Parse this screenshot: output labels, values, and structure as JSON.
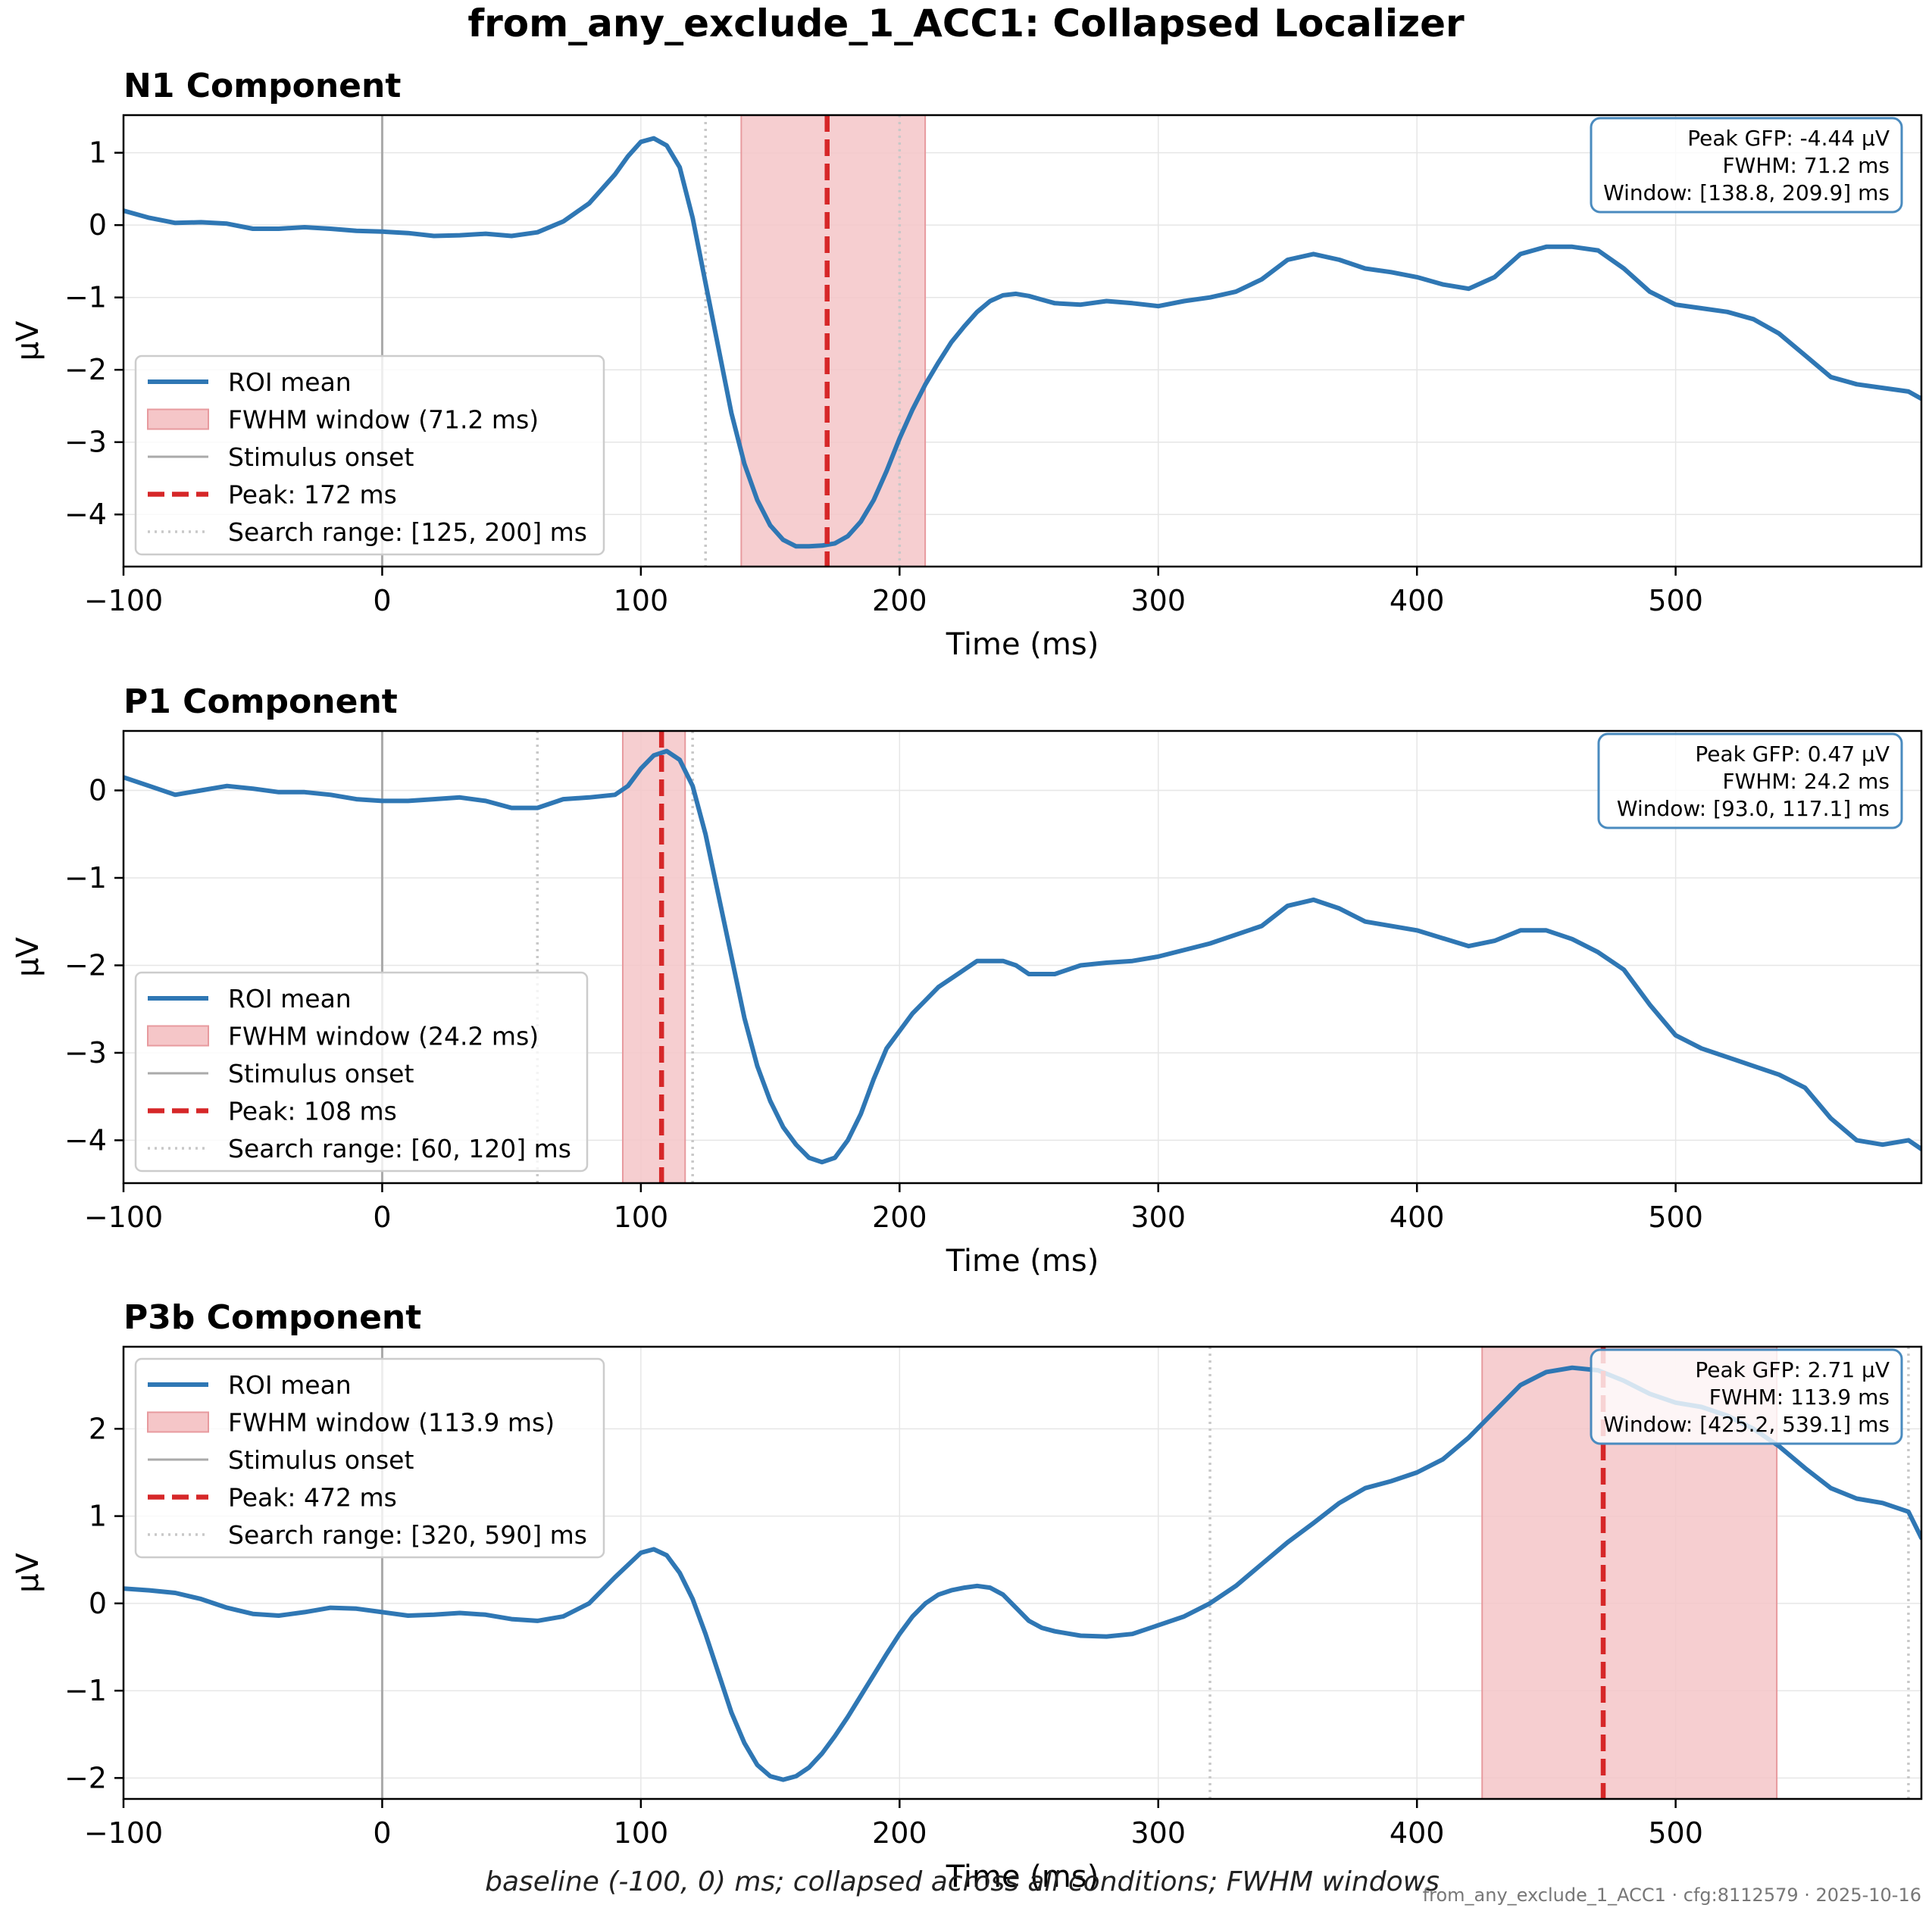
{
  "figure": {
    "title": "from_any_exclude_1_ACC1: Collapsed Localizer",
    "footer_caption": "baseline (-100, 0) ms; collapsed across all conditions; FWHM windows",
    "footer_stamp": "from_any_exclude_1_ACC1 · cfg:8112579 · 2025-10-16"
  },
  "colors": {
    "roi_line": "#2f77b4",
    "fwhm_fill": "#f5c6c8",
    "fwhm_edge": "#e79a9e",
    "peak_line": "#d62728",
    "onset_line": "#aaaaaa",
    "search_line": "#c8c8c8",
    "grid": "#e6e6e6",
    "info_border": "#4a8bbf"
  },
  "chart_data": [
    {
      "type": "line",
      "title": "N1 Component",
      "xlabel": "Time (ms)",
      "ylabel": "µV",
      "xlim": [
        -100,
        595
      ],
      "ylim": [
        -4.72,
        1.52
      ],
      "xticks": [
        -100,
        0,
        100,
        200,
        300,
        400,
        500
      ],
      "yticks": [
        -4,
        -3,
        -2,
        -1,
        0,
        1
      ],
      "xtick_labels": [
        "−100",
        "0",
        "100",
        "200",
        "300",
        "400",
        "500"
      ],
      "ytick_labels": [
        "−4",
        "−3",
        "−2",
        "−1",
        "0",
        "1"
      ],
      "grid": true,
      "legend_placement": "lower-left",
      "legend": [
        {
          "kind": "line",
          "label": "ROI mean"
        },
        {
          "kind": "patch",
          "label": "FWHM window (71.2 ms)"
        },
        {
          "kind": "onset",
          "label": "Stimulus onset"
        },
        {
          "kind": "peak",
          "label": "Peak: 172 ms"
        },
        {
          "kind": "search",
          "label": "Search range: [125, 200] ms"
        }
      ],
      "info_box": [
        "Peak GFP: -4.44 µV",
        "FWHM: 71.2 ms",
        "Window: [138.8, 209.9] ms"
      ],
      "fwhm_window": [
        138.8,
        209.9
      ],
      "peak_ms": 172,
      "search_range": [
        125,
        200
      ],
      "onset_ms": 0,
      "series": [
        {
          "name": "ROI mean",
          "x": [
            -100,
            -90,
            -80,
            -70,
            -60,
            -50,
            -40,
            -30,
            -20,
            -10,
            0,
            10,
            20,
            30,
            40,
            50,
            60,
            70,
            80,
            90,
            95,
            100,
            105,
            110,
            115,
            120,
            125,
            130,
            135,
            140,
            145,
            150,
            155,
            160,
            165,
            170,
            175,
            180,
            185,
            190,
            195,
            200,
            205,
            210,
            215,
            220,
            225,
            230,
            235,
            240,
            245,
            250,
            255,
            260,
            270,
            280,
            290,
            300,
            310,
            320,
            330,
            340,
            350,
            360,
            370,
            380,
            390,
            400,
            410,
            420,
            430,
            440,
            450,
            460,
            470,
            480,
            490,
            500,
            510,
            520,
            530,
            540,
            550,
            560,
            570,
            580,
            590,
            595
          ],
          "y": [
            0.2,
            0.1,
            0.03,
            0.04,
            0.02,
            -0.05,
            -0.05,
            -0.03,
            -0.05,
            -0.08,
            -0.09,
            -0.11,
            -0.15,
            -0.14,
            -0.12,
            -0.15,
            -0.1,
            0.05,
            0.3,
            0.7,
            0.95,
            1.15,
            1.2,
            1.1,
            0.8,
            0.1,
            -0.8,
            -1.7,
            -2.6,
            -3.3,
            -3.8,
            -4.15,
            -4.35,
            -4.44,
            -4.44,
            -4.43,
            -4.4,
            -4.3,
            -4.1,
            -3.8,
            -3.4,
            -2.95,
            -2.55,
            -2.2,
            -1.9,
            -1.62,
            -1.4,
            -1.2,
            -1.05,
            -0.97,
            -0.95,
            -0.98,
            -1.03,
            -1.08,
            -1.1,
            -1.05,
            -1.08,
            -1.12,
            -1.05,
            -1.0,
            -0.92,
            -0.75,
            -0.48,
            -0.4,
            -0.48,
            -0.6,
            -0.65,
            -0.72,
            -0.82,
            -0.88,
            -0.72,
            -0.4,
            -0.3,
            -0.3,
            -0.35,
            -0.6,
            -0.92,
            -1.1,
            -1.15,
            -1.2,
            -1.3,
            -1.5,
            -1.8,
            -2.1,
            -2.2,
            -2.25,
            -2.3,
            -2.4
          ]
        }
      ]
    },
    {
      "type": "line",
      "title": "P1 Component",
      "xlabel": "Time (ms)",
      "ylabel": "µV",
      "xlim": [
        -100,
        595
      ],
      "ylim": [
        -4.49,
        0.68
      ],
      "xticks": [
        -100,
        0,
        100,
        200,
        300,
        400,
        500
      ],
      "yticks": [
        -4,
        -3,
        -2,
        -1,
        0
      ],
      "xtick_labels": [
        "−100",
        "0",
        "100",
        "200",
        "300",
        "400",
        "500"
      ],
      "ytick_labels": [
        "−4",
        "−3",
        "−2",
        "−1",
        "0"
      ],
      "grid": true,
      "legend_placement": "lower-left",
      "legend": [
        {
          "kind": "line",
          "label": "ROI mean"
        },
        {
          "kind": "patch",
          "label": "FWHM window (24.2 ms)"
        },
        {
          "kind": "onset",
          "label": "Stimulus onset"
        },
        {
          "kind": "peak",
          "label": "Peak: 108 ms"
        },
        {
          "kind": "search",
          "label": "Search range: [60, 120] ms"
        }
      ],
      "info_box": [
        "Peak GFP: 0.47 µV",
        "FWHM: 24.2 ms",
        "Window: [93.0, 117.1] ms"
      ],
      "fwhm_window": [
        93.0,
        117.1
      ],
      "peak_ms": 108,
      "search_range": [
        60,
        120
      ],
      "onset_ms": 0,
      "series": [
        {
          "name": "ROI mean",
          "x": [
            -100,
            -90,
            -80,
            -70,
            -60,
            -50,
            -40,
            -30,
            -20,
            -10,
            0,
            10,
            20,
            30,
            40,
            50,
            60,
            70,
            80,
            90,
            95,
            100,
            105,
            110,
            115,
            120,
            125,
            130,
            135,
            140,
            145,
            150,
            155,
            160,
            165,
            170,
            175,
            180,
            185,
            190,
            195,
            200,
            205,
            210,
            215,
            220,
            230,
            240,
            245,
            250,
            260,
            270,
            280,
            290,
            300,
            320,
            340,
            350,
            360,
            370,
            380,
            400,
            420,
            430,
            440,
            450,
            460,
            470,
            480,
            490,
            500,
            510,
            520,
            530,
            540,
            550,
            560,
            570,
            580,
            590,
            595
          ],
          "y": [
            0.15,
            0.05,
            -0.05,
            0.0,
            0.05,
            0.02,
            -0.02,
            -0.02,
            -0.05,
            -0.1,
            -0.12,
            -0.12,
            -0.1,
            -0.08,
            -0.12,
            -0.2,
            -0.2,
            -0.1,
            -0.08,
            -0.05,
            0.05,
            0.25,
            0.4,
            0.45,
            0.35,
            0.05,
            -0.5,
            -1.2,
            -1.9,
            -2.6,
            -3.15,
            -3.55,
            -3.85,
            -4.05,
            -4.2,
            -4.25,
            -4.2,
            -4.0,
            -3.7,
            -3.3,
            -2.95,
            -2.75,
            -2.55,
            -2.4,
            -2.25,
            -2.15,
            -1.95,
            -1.95,
            -2.0,
            -2.1,
            -2.1,
            -2.0,
            -1.97,
            -1.95,
            -1.9,
            -1.75,
            -1.55,
            -1.32,
            -1.25,
            -1.35,
            -1.5,
            -1.6,
            -1.78,
            -1.72,
            -1.6,
            -1.6,
            -1.7,
            -1.85,
            -2.05,
            -2.45,
            -2.8,
            -2.95,
            -3.05,
            -3.15,
            -3.25,
            -3.4,
            -3.75,
            -4.0,
            -4.05,
            -4.0,
            -4.1
          ]
        }
      ]
    },
    {
      "type": "line",
      "title": "P3b Component",
      "xlabel": "Time (ms)",
      "ylabel": "µV",
      "xlim": [
        -100,
        595
      ],
      "ylim": [
        -2.24,
        2.94
      ],
      "xticks": [
        -100,
        0,
        100,
        200,
        300,
        400,
        500
      ],
      "yticks": [
        -2,
        -1,
        0,
        1,
        2
      ],
      "xtick_labels": [
        "−100",
        "0",
        "100",
        "200",
        "300",
        "400",
        "500"
      ],
      "ytick_labels": [
        "−2",
        "−1",
        "0",
        "1",
        "2"
      ],
      "grid": true,
      "legend_placement": "upper-left",
      "legend": [
        {
          "kind": "line",
          "label": "ROI mean"
        },
        {
          "kind": "patch",
          "label": "FWHM window (113.9 ms)"
        },
        {
          "kind": "onset",
          "label": "Stimulus onset"
        },
        {
          "kind": "peak",
          "label": "Peak: 472 ms"
        },
        {
          "kind": "search",
          "label": "Search range: [320, 590] ms"
        }
      ],
      "info_box": [
        "Peak GFP: 2.71 µV",
        "FWHM: 113.9 ms",
        "Window: [425.2, 539.1] ms"
      ],
      "fwhm_window": [
        425.2,
        539.1
      ],
      "peak_ms": 472,
      "search_range": [
        320,
        590
      ],
      "onset_ms": 0,
      "series": [
        {
          "name": "ROI mean",
          "x": [
            -100,
            -90,
            -80,
            -70,
            -60,
            -50,
            -40,
            -30,
            -20,
            -10,
            0,
            10,
            20,
            30,
            40,
            50,
            60,
            70,
            80,
            90,
            100,
            105,
            110,
            115,
            120,
            125,
            130,
            135,
            140,
            145,
            150,
            155,
            160,
            165,
            170,
            175,
            180,
            185,
            190,
            195,
            200,
            205,
            210,
            215,
            220,
            225,
            230,
            235,
            240,
            245,
            250,
            255,
            260,
            270,
            280,
            290,
            300,
            310,
            320,
            330,
            340,
            350,
            360,
            370,
            380,
            390,
            400,
            410,
            420,
            430,
            440,
            450,
            460,
            470,
            480,
            490,
            500,
            510,
            520,
            530,
            540,
            550,
            560,
            570,
            580,
            590,
            595
          ],
          "y": [
            0.17,
            0.15,
            0.12,
            0.05,
            -0.05,
            -0.12,
            -0.14,
            -0.1,
            -0.05,
            -0.06,
            -0.1,
            -0.14,
            -0.13,
            -0.11,
            -0.13,
            -0.18,
            -0.2,
            -0.15,
            0.0,
            0.3,
            0.58,
            0.62,
            0.55,
            0.35,
            0.05,
            -0.35,
            -0.8,
            -1.25,
            -1.6,
            -1.85,
            -1.98,
            -2.02,
            -1.98,
            -1.88,
            -1.72,
            -1.52,
            -1.3,
            -1.06,
            -0.82,
            -0.58,
            -0.35,
            -0.15,
            0.0,
            0.1,
            0.15,
            0.18,
            0.2,
            0.18,
            0.1,
            -0.05,
            -0.2,
            -0.28,
            -0.32,
            -0.37,
            -0.38,
            -0.35,
            -0.25,
            -0.15,
            0.0,
            0.2,
            0.45,
            0.7,
            0.92,
            1.15,
            1.32,
            1.4,
            1.5,
            1.65,
            1.9,
            2.2,
            2.5,
            2.65,
            2.7,
            2.67,
            2.55,
            2.4,
            2.3,
            2.25,
            2.15,
            2.0,
            1.8,
            1.55,
            1.32,
            1.2,
            1.15,
            1.05,
            0.75
          ]
        }
      ]
    }
  ]
}
